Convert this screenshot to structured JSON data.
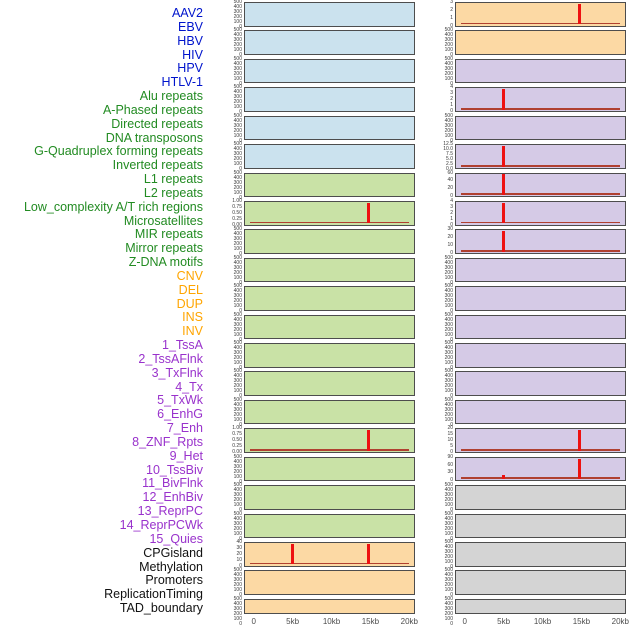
{
  "colors": {
    "label_groups": {
      "virus": "#0014cc",
      "repeat": "#228b22",
      "structural_variant": "#ffa500",
      "chromatin_state": "#9932cc",
      "other": "#111111"
    },
    "panel_fill": {
      "blue": "#cbe2ee",
      "green": "#c9e2a6",
      "orange": "#fcd9a4",
      "purple": "#d5cae6",
      "gray": "#d4d4d4"
    },
    "baseline": "#b04030",
    "spike": "#ee1111",
    "panel_border": "#4d4d4d",
    "tick_text": "#3a3a3a",
    "axis_text": "#4d4d4d"
  },
  "chart_data": {
    "type": "line",
    "layout": "small-multiples, 2 columns x 22 rows of genomic signal panels; flat baseline at 0 with sharp red peaks",
    "x_axis": {
      "tick_labels": [
        "0",
        "5kb",
        "10kb",
        "15kb",
        "20kb"
      ],
      "tick_kb": [
        0,
        5,
        10,
        15,
        20
      ],
      "range_kb": [
        0,
        20
      ]
    },
    "default_y_ticks": [
      "500",
      "400",
      "300",
      "200",
      "100",
      "0"
    ],
    "row_labels": [
      {
        "text": "AAV2",
        "group": "virus"
      },
      {
        "text": "EBV",
        "group": "virus"
      },
      {
        "text": "HBV",
        "group": "virus"
      },
      {
        "text": "HIV",
        "group": "virus"
      },
      {
        "text": "HPV",
        "group": "virus"
      },
      {
        "text": "HTLV-1",
        "group": "virus"
      },
      {
        "text": "Alu repeats",
        "group": "repeat"
      },
      {
        "text": "A-Phased repeats",
        "group": "repeat"
      },
      {
        "text": "Directed repeats",
        "group": "repeat"
      },
      {
        "text": "DNA transposons",
        "group": "repeat"
      },
      {
        "text": "G-Quadruplex forming repeats",
        "group": "repeat"
      },
      {
        "text": "Inverted repeats",
        "group": "repeat"
      },
      {
        "text": "L1 repeats",
        "group": "repeat"
      },
      {
        "text": "L2 repeats",
        "group": "repeat"
      },
      {
        "text": "Low_complexity A/T rich regions",
        "group": "repeat"
      },
      {
        "text": "Microsatellites",
        "group": "repeat"
      },
      {
        "text": "MIR repeats",
        "group": "repeat"
      },
      {
        "text": "Mirror repeats",
        "group": "repeat"
      },
      {
        "text": "Z-DNA motifs",
        "group": "repeat"
      },
      {
        "text": "CNV",
        "group": "structural_variant"
      },
      {
        "text": "DEL",
        "group": "structural_variant"
      },
      {
        "text": "DUP",
        "group": "structural_variant"
      },
      {
        "text": "INS",
        "group": "structural_variant"
      },
      {
        "text": "INV",
        "group": "structural_variant"
      },
      {
        "text": "1_TssA",
        "group": "chromatin_state"
      },
      {
        "text": "2_TssAFlnk",
        "group": "chromatin_state"
      },
      {
        "text": "3_TxFlnk",
        "group": "chromatin_state"
      },
      {
        "text": "4_Tx",
        "group": "chromatin_state"
      },
      {
        "text": "5_TxWk",
        "group": "chromatin_state"
      },
      {
        "text": "6_EnhG",
        "group": "chromatin_state"
      },
      {
        "text": "7_Enh",
        "group": "chromatin_state"
      },
      {
        "text": "8_ZNF_Rpts",
        "group": "chromatin_state"
      },
      {
        "text": "9_Het",
        "group": "chromatin_state"
      },
      {
        "text": "10_TssBiv",
        "group": "chromatin_state"
      },
      {
        "text": "11_BivFlnk",
        "group": "chromatin_state"
      },
      {
        "text": "12_EnhBiv",
        "group": "chromatin_state"
      },
      {
        "text": "13_ReprPC",
        "group": "chromatin_state"
      },
      {
        "text": "14_ReprPCWk",
        "group": "chromatin_state"
      },
      {
        "text": "15_Quies",
        "group": "chromatin_state"
      },
      {
        "text": "CPGisland",
        "group": "other"
      },
      {
        "text": "Methylation",
        "group": "other"
      },
      {
        "text": "Promoters",
        "group": "other"
      },
      {
        "text": "ReplicationTiming",
        "group": "other"
      },
      {
        "text": "TAD_boundary",
        "group": "other"
      }
    ],
    "columns": [
      {
        "id": "left",
        "panels": [
          {
            "feature": "AAV2",
            "fill": "blue",
            "y_ticks": null,
            "peaks": []
          },
          {
            "feature": "EBV",
            "fill": "blue",
            "y_ticks": null,
            "peaks": []
          },
          {
            "feature": "HBV",
            "fill": "blue",
            "y_ticks": null,
            "peaks": []
          },
          {
            "feature": "HIV",
            "fill": "blue",
            "y_ticks": null,
            "peaks": []
          },
          {
            "feature": "HPV",
            "fill": "blue",
            "y_ticks": null,
            "peaks": []
          },
          {
            "feature": "HTLV-1",
            "fill": "blue",
            "y_ticks": null,
            "peaks": []
          },
          {
            "feature": "Alu repeats",
            "fill": "green",
            "y_ticks": null,
            "peaks": []
          },
          {
            "feature": "A-Phased repeats",
            "fill": "green",
            "y_ticks": [
              "1.00",
              "0.75",
              "0.50",
              "0.25",
              "0.00"
            ],
            "peaks": [
              {
                "kb": 14.8,
                "height_frac": 1.0
              }
            ]
          },
          {
            "feature": "Directed repeats",
            "fill": "green",
            "y_ticks": null,
            "peaks": []
          },
          {
            "feature": "DNA transposons",
            "fill": "green",
            "y_ticks": null,
            "peaks": []
          },
          {
            "feature": "G-Quadruplex forming repeats",
            "fill": "green",
            "y_ticks": null,
            "peaks": []
          },
          {
            "feature": "Inverted repeats",
            "fill": "green",
            "y_ticks": null,
            "peaks": []
          },
          {
            "feature": "L1 repeats",
            "fill": "green",
            "y_ticks": null,
            "peaks": []
          },
          {
            "feature": "L2 repeats",
            "fill": "green",
            "y_ticks": null,
            "peaks": []
          },
          {
            "feature": "Low_complexity A/T rich regions",
            "fill": "green",
            "y_ticks": null,
            "peaks": []
          },
          {
            "feature": "Microsatellites",
            "fill": "green",
            "y_ticks": [
              "1.00",
              "0.75",
              "0.50",
              "0.25",
              "0.00"
            ],
            "peaks": [
              {
                "kb": 14.8,
                "height_frac": 1.0
              }
            ]
          },
          {
            "feature": "MIR repeats",
            "fill": "green",
            "y_ticks": null,
            "peaks": []
          },
          {
            "feature": "Mirror repeats",
            "fill": "green",
            "y_ticks": null,
            "peaks": []
          },
          {
            "feature": "Z-DNA motifs",
            "fill": "green",
            "y_ticks": null,
            "peaks": []
          },
          {
            "feature": "CNV",
            "fill": "orange",
            "y_ticks": [
              "40",
              "30",
              "20",
              "10",
              "0"
            ],
            "peaks": [
              {
                "kb": 5,
                "height_frac": 1.0
              },
              {
                "kb": 14.8,
                "height_frac": 1.0
              }
            ]
          },
          {
            "feature": "DEL",
            "fill": "orange",
            "y_ticks": null,
            "peaks": []
          },
          {
            "feature": "DUP",
            "fill": "orange",
            "y_ticks": null,
            "peaks": []
          }
        ]
      },
      {
        "id": "right",
        "panels": [
          {
            "feature": "INS",
            "fill": "orange",
            "y_ticks": [
              "3",
              "2",
              "1",
              "0"
            ],
            "peaks": [
              {
                "kb": 14.8,
                "height_frac": 1.0
              }
            ]
          },
          {
            "feature": "INV",
            "fill": "orange",
            "y_ticks": null,
            "peaks": []
          },
          {
            "feature": "1_TssA",
            "fill": "purple",
            "y_ticks": null,
            "peaks": []
          },
          {
            "feature": "2_TssAFlnk",
            "fill": "purple",
            "y_ticks": [
              "4",
              "3",
              "2",
              "1",
              "0"
            ],
            "peaks": [
              {
                "kb": 5,
                "height_frac": 1.0
              }
            ]
          },
          {
            "feature": "3_TxFlnk",
            "fill": "purple",
            "y_ticks": null,
            "peaks": []
          },
          {
            "feature": "4_Tx",
            "fill": "purple",
            "y_ticks": [
              "12.5",
              "10.0",
              "7.5",
              "5.0",
              "2.5",
              "0.0"
            ],
            "peaks": [
              {
                "kb": 5,
                "height_frac": 1.0
              }
            ]
          },
          {
            "feature": "5_TxWk",
            "fill": "purple",
            "y_ticks": [
              "60",
              "40",
              "20",
              "0"
            ],
            "peaks": [
              {
                "kb": 5,
                "height_frac": 1.0
              }
            ]
          },
          {
            "feature": "6_EnhG",
            "fill": "purple",
            "y_ticks": [
              "4",
              "3",
              "2",
              "1",
              "0"
            ],
            "peaks": [
              {
                "kb": 5,
                "height_frac": 1.0
              }
            ]
          },
          {
            "feature": "7_Enh",
            "fill": "purple",
            "y_ticks": [
              "30",
              "20",
              "10",
              "0"
            ],
            "peaks": [
              {
                "kb": 5,
                "height_frac": 1.0
              }
            ]
          },
          {
            "feature": "8_ZNF_Rpts",
            "fill": "purple",
            "y_ticks": null,
            "peaks": []
          },
          {
            "feature": "9_Het",
            "fill": "purple",
            "y_ticks": null,
            "peaks": []
          },
          {
            "feature": "10_TssBiv",
            "fill": "purple",
            "y_ticks": null,
            "peaks": []
          },
          {
            "feature": "11_BivFlnk",
            "fill": "purple",
            "y_ticks": null,
            "peaks": []
          },
          {
            "feature": "12_EnhBiv",
            "fill": "purple",
            "y_ticks": null,
            "peaks": []
          },
          {
            "feature": "13_ReprPC",
            "fill": "purple",
            "y_ticks": null,
            "peaks": []
          },
          {
            "feature": "14_ReprPCWk",
            "fill": "purple",
            "y_ticks": [
              "20",
              "15",
              "10",
              "5",
              "0"
            ],
            "peaks": [
              {
                "kb": 14.8,
                "height_frac": 1.0
              }
            ]
          },
          {
            "feature": "15_Quies",
            "fill": "purple",
            "y_ticks": [
              "90",
              "60",
              "30",
              "0"
            ],
            "peaks": [
              {
                "kb": 5,
                "height_frac": 0.2
              },
              {
                "kb": 14.8,
                "height_frac": 1.0
              }
            ]
          },
          {
            "feature": "CPGisland",
            "fill": "gray",
            "y_ticks": null,
            "peaks": []
          },
          {
            "feature": "Methylation",
            "fill": "gray",
            "y_ticks": null,
            "peaks": []
          },
          {
            "feature": "Promoters",
            "fill": "gray",
            "y_ticks": null,
            "peaks": []
          },
          {
            "feature": "ReplicationTiming",
            "fill": "gray",
            "y_ticks": null,
            "peaks": []
          },
          {
            "feature": "TAD_boundary",
            "fill": "gray",
            "y_ticks": null,
            "peaks": []
          }
        ]
      }
    ]
  }
}
